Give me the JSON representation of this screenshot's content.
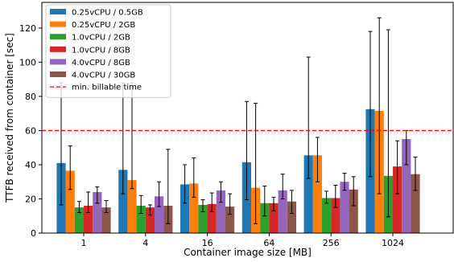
{
  "chart_data": {
    "type": "bar",
    "xlabel": "Container image size [MB]",
    "ylabel": "TTFB received from container [sec]",
    "ylim": [
      0,
      135
    ],
    "yticks": [
      0,
      20,
      40,
      60,
      80,
      100,
      120
    ],
    "grid": false,
    "legend_position": "top-left",
    "categories": [
      "1",
      "4",
      "16",
      "64",
      "256",
      "1024"
    ],
    "series": [
      {
        "name": "0.25vCPU / 0.5GB",
        "color": "#1f77b4",
        "values": [
          41,
          37,
          28.5,
          41.5,
          45.5,
          72.5
        ],
        "error_low": [
          16.5,
          23,
          17.5,
          19.5,
          32,
          33
        ],
        "error_high": [
          88,
          88,
          40,
          77,
          103,
          118
        ]
      },
      {
        "name": "0.25vCPU / 2GB",
        "color": "#ff7f0e",
        "values": [
          36.5,
          31,
          29,
          26.5,
          45.5,
          71.5
        ],
        "error_low": [
          25.5,
          26,
          21,
          5.5,
          30,
          23
        ],
        "error_high": [
          51,
          88,
          44,
          76,
          56,
          126
        ]
      },
      {
        "name": "1.0vCPU / 2GB",
        "color": "#2ca02c",
        "values": [
          15,
          16,
          16.5,
          17.5,
          20.5,
          33.5
        ],
        "error_low": [
          12,
          11.5,
          12.5,
          10,
          17.5,
          9.5
        ],
        "error_high": [
          18.5,
          22,
          19.5,
          27.5,
          24.5,
          119
        ]
      },
      {
        "name": "1.0vCPU / 8GB",
        "color": "#d62728",
        "values": [
          16,
          15,
          17,
          17.5,
          20.5,
          39
        ],
        "error_low": [
          12,
          10.5,
          12.5,
          13,
          15,
          23
        ],
        "error_high": [
          24,
          16.5,
          23.5,
          21,
          28,
          54
        ]
      },
      {
        "name": "4.0vCPU / 8GB",
        "color": "#9467bd",
        "values": [
          24,
          21.5,
          25,
          25,
          30,
          55
        ],
        "error_low": [
          17.5,
          15.5,
          18,
          20,
          25,
          40
        ],
        "error_high": [
          27,
          30,
          30,
          34.5,
          35,
          60
        ]
      },
      {
        "name": "4.0vCPU / 30GB",
        "color": "#8c564b",
        "values": [
          15,
          16,
          15.5,
          18.5,
          25.5,
          34.5
        ],
        "error_low": [
          12,
          5.5,
          11,
          11.5,
          16,
          25
        ],
        "error_high": [
          19,
          49,
          23,
          25,
          33,
          44.5
        ]
      }
    ],
    "reference_line": {
      "label": "min. billable time",
      "value": 60,
      "color": "#ff0000"
    }
  }
}
